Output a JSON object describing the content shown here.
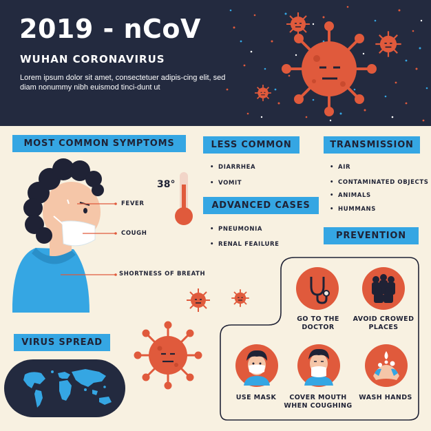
{
  "header": {
    "title": "2019 - nCoV",
    "subtitle": "WUHAN CORONAVIRUS",
    "body_text": "Lorem ipsum dolor sit amet, consectetuer adipis-cing elit, sed diam nonummy nibh euismod tinci-dunt ut"
  },
  "symptoms": {
    "label": "MOST COMMON SYMPTOMS",
    "temperature": "38°",
    "items": [
      "FEVER",
      "COUGH",
      "SHORTNESS OF BREATH"
    ]
  },
  "less_common": {
    "label": "LESS COMMON",
    "items": [
      "DIARRHEA",
      "VOMIT"
    ]
  },
  "advanced": {
    "label": "ADVANCED CASES",
    "items": [
      "PNEUMONIA",
      "RENAL FEAILURE"
    ]
  },
  "transmission": {
    "label": "TRANSMISSION",
    "items": [
      "AIR",
      "CONTAMINATED OBJECTS",
      "ANIMALS",
      "HUMMANS"
    ]
  },
  "prevention": {
    "label": "PREVENTION",
    "items": [
      {
        "line1": "GO TO THE",
        "line2": "DOCTOR",
        "icon": "stethoscope-icon"
      },
      {
        "line1": "AVOID CROWED",
        "line2": "PLACES",
        "icon": "crowd-icon"
      },
      {
        "line1": "USE MASK",
        "line2": "",
        "icon": "mask-person-icon"
      },
      {
        "line1": "COVER MOUTH",
        "line2": "WHEN COUGHING",
        "icon": "coughing-person-icon"
      },
      {
        "line1": "WASH HANDS",
        "line2": "",
        "icon": "wash-hands-icon"
      }
    ]
  },
  "virus_spread": {
    "label": "VIRUS SPREAD",
    "icon": "world-map-icon"
  },
  "colors": {
    "navy": "#232a3f",
    "cream": "#f8f1e1",
    "accent_blue": "#35a6e3",
    "virus_red": "#e05a3c"
  }
}
